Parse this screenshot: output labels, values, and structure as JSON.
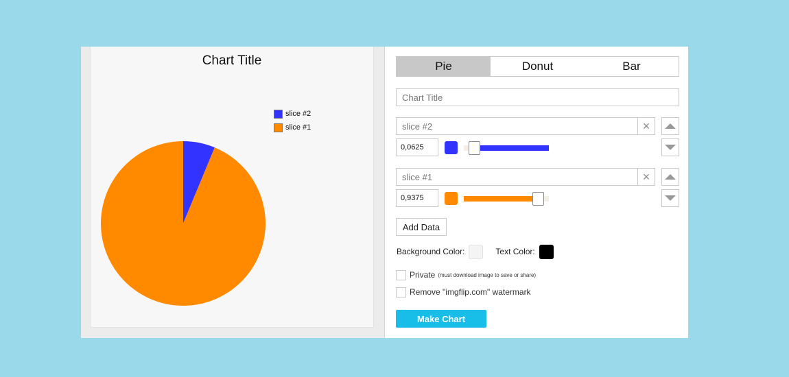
{
  "chart_data": {
    "type": "pie",
    "title": "Chart Title",
    "categories": [
      "slice #2",
      "slice #1"
    ],
    "values": [
      0.0625,
      0.9375
    ],
    "colors": [
      "#3333ff",
      "#ff8a00"
    ],
    "legend_position": "top-right"
  },
  "chart_types": {
    "pie": "Pie",
    "donut": "Donut",
    "bar": "Bar",
    "selected": "Pie"
  },
  "title_input": {
    "placeholder": "Chart Title"
  },
  "slices": [
    {
      "name_placeholder": "slice #2",
      "value": "0,0625",
      "color": "#3333ff",
      "level": 0.0625
    },
    {
      "name_placeholder": "slice #1",
      "value": "0,9375",
      "color": "#ff8a00",
      "level": 0.9375
    }
  ],
  "clear_icon": "×",
  "add_data_label": "Add Data",
  "background_color_label": "Background Color:",
  "background_color": "#f4f4f4",
  "text_color_label": "Text Color:",
  "text_color": "#000000",
  "private_label": "Private",
  "private_note": "(must download image to save or share)",
  "watermark_label": "Remove \"imgflip.com\" watermark",
  "make_chart_label": "Make Chart"
}
